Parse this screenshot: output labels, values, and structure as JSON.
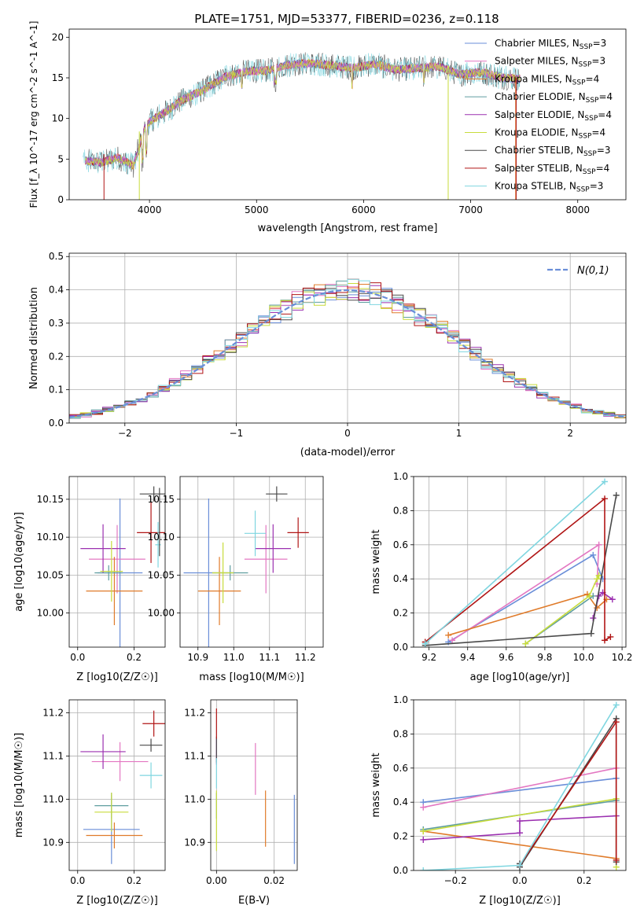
{
  "title": "PLATE=1751, MJD=53377, FIBERID=0236, z=0.118",
  "colors": {
    "chabrier_miles": "#6a8ed8",
    "salpeter_miles": "#e377c2",
    "kroupa_miles": "#e07b2a",
    "chabrier_elodie": "#5f9ea0",
    "salpeter_elodie": "#9b30b0",
    "kroupa_elodie": "#c8dc3c",
    "chabrier_stelib": "#4a4a4a",
    "salpeter_stelib": "#b01515",
    "kroupa_stelib": "#7fd6e0"
  },
  "chart_data": [
    {
      "id": "spectrum",
      "type": "line",
      "xlabel": "wavelength [Angstrom, rest frame]",
      "ylabel": "Flux [f_λ 10^-17 erg cm^-2 s^-1 A^-1]",
      "xlim": [
        3250,
        8450
      ],
      "ylim": [
        0,
        21
      ],
      "xticks": [
        4000,
        5000,
        6000,
        7000,
        8000
      ],
      "yticks": [
        0,
        5,
        10,
        15,
        20
      ],
      "continuum_anchors": [
        [
          3400,
          4.8
        ],
        [
          3550,
          4.6
        ],
        [
          3700,
          5.2
        ],
        [
          3850,
          4.2
        ],
        [
          3950,
          8.6
        ],
        [
          4000,
          9.6
        ],
        [
          4150,
          10.8
        ],
        [
          4300,
          12.2
        ],
        [
          4500,
          13.5
        ],
        [
          4700,
          15.1
        ],
        [
          4900,
          15.8
        ],
        [
          5100,
          15.9
        ],
        [
          5300,
          16.6
        ],
        [
          5500,
          16.8
        ],
        [
          5700,
          16.5
        ],
        [
          5900,
          16.2
        ],
        [
          6100,
          16.7
        ],
        [
          6300,
          16.0
        ],
        [
          6500,
          16.2
        ],
        [
          6700,
          16.4
        ],
        [
          6900,
          15.4
        ],
        [
          7100,
          15.7
        ],
        [
          7300,
          15.0
        ],
        [
          7500,
          14.8
        ],
        [
          7800,
          15.4
        ]
      ],
      "series_labels": [
        {
          "key": "chabrier_miles",
          "label": "Chabrier MILES, N",
          "sub": "SSP",
          "val": "=3"
        },
        {
          "key": "salpeter_miles",
          "label": "Salpeter MILES, N",
          "sub": "SSP",
          "val": "=3"
        },
        {
          "key": "kroupa_miles",
          "label": "Kroupa MILES, N",
          "sub": "SSP",
          "val": "=4"
        },
        {
          "key": "chabrier_elodie",
          "label": "Chabrier ELODIE, N",
          "sub": "SSP",
          "val": "=4"
        },
        {
          "key": "salpeter_elodie",
          "label": "Salpeter ELODIE, N",
          "sub": "SSP",
          "val": "=4"
        },
        {
          "key": "kroupa_elodie",
          "label": "Kroupa ELODIE, N",
          "sub": "SSP",
          "val": "=4"
        },
        {
          "key": "chabrier_stelib",
          "label": "Chabrier STELIB, N",
          "sub": "SSP",
          "val": "=3"
        },
        {
          "key": "salpeter_stelib",
          "label": "Salpeter STELIB, N",
          "sub": "SSP",
          "val": "=4"
        },
        {
          "key": "kroupa_stelib",
          "label": "Kroupa STELIB, N",
          "sub": "SSP",
          "val": "=3"
        }
      ],
      "legend": "upper right"
    },
    {
      "id": "residuals",
      "type": "step",
      "xlabel": "(data-model)/error",
      "ylabel": "Normed distribution",
      "xlim": [
        -2.5,
        2.5
      ],
      "ylim": [
        0,
        0.51
      ],
      "xticks": [
        -2,
        -1,
        0,
        1,
        2
      ],
      "yticks": [
        0.0,
        0.1,
        0.2,
        0.3,
        0.4,
        0.5
      ],
      "bin_width": 0.1,
      "reference": "N(0,1)",
      "grid": true,
      "legend": "upper right"
    },
    {
      "id": "age_vs_Z",
      "type": "errorbar",
      "xlabel": "Z [log10(Z/Z☉)]",
      "ylabel": "age [log10(age/yr)]",
      "xlim": [
        -0.03,
        0.31
      ],
      "ylim": [
        9.955,
        10.18
      ],
      "xticks": [
        0.0,
        0.2
      ],
      "yticks": [
        10.0,
        10.05,
        10.1,
        10.15
      ],
      "points": [
        {
          "key": "chabrier_miles",
          "x": 0.15,
          "y": 10.053,
          "xerr": 0.08,
          "yerr": 0.098
        },
        {
          "key": "salpeter_miles",
          "x": 0.14,
          "y": 10.071,
          "xerr": 0.1,
          "yerr": 0.045
        },
        {
          "key": "kroupa_miles",
          "x": 0.13,
          "y": 10.029,
          "xerr": 0.1,
          "yerr": 0.045
        },
        {
          "key": "chabrier_elodie",
          "x": 0.11,
          "y": 10.053,
          "xerr": 0.05,
          "yerr": 0.01
        },
        {
          "key": "salpeter_elodie",
          "x": 0.09,
          "y": 10.085,
          "xerr": 0.08,
          "yerr": 0.032
        },
        {
          "key": "kroupa_elodie",
          "x": 0.12,
          "y": 10.055,
          "xerr": 0.04,
          "yerr": 0.04
        },
        {
          "key": "chabrier_stelib",
          "x": 0.27,
          "y": 10.157,
          "xerr": 0.05,
          "yerr": 0.01
        },
        {
          "key": "salpeter_stelib",
          "x": 0.26,
          "y": 10.106,
          "xerr": 0.05,
          "yerr": 0.04
        },
        {
          "key": "kroupa_stelib",
          "x": 0.285,
          "y": 10.09,
          "xerr": 0.01,
          "yerr": 0.03
        },
        {
          "key": "chabrier_stelib",
          "x": 0.29,
          "y": 10.12,
          "xerr": 0.0,
          "yerr": 0.045
        }
      ]
    },
    {
      "id": "age_vs_mass",
      "type": "errorbar",
      "xlabel": "mass [log10(M/M☉)]",
      "ylabel": "",
      "xlim": [
        10.85,
        11.25
      ],
      "ylim": [
        9.955,
        10.18
      ],
      "xticks": [
        10.9,
        11.0,
        11.1,
        11.2
      ],
      "yticks": [
        10.0,
        10.05,
        10.1,
        10.15
      ],
      "points": [
        {
          "key": "chabrier_miles",
          "x": 10.93,
          "y": 10.053,
          "xerr": 0.07,
          "yerr": 0.098
        },
        {
          "key": "salpeter_miles",
          "x": 11.09,
          "y": 10.071,
          "xerr": 0.06,
          "yerr": 0.045
        },
        {
          "key": "kroupa_miles",
          "x": 10.96,
          "y": 10.029,
          "xerr": 0.06,
          "yerr": 0.045
        },
        {
          "key": "chabrier_elodie",
          "x": 10.99,
          "y": 10.053,
          "xerr": 0.05,
          "yerr": 0.01
        },
        {
          "key": "salpeter_elodie",
          "x": 11.11,
          "y": 10.085,
          "xerr": 0.05,
          "yerr": 0.032
        },
        {
          "key": "kroupa_elodie",
          "x": 10.97,
          "y": 10.053,
          "xerr": 0.03,
          "yerr": 0.04
        },
        {
          "key": "chabrier_stelib",
          "x": 11.12,
          "y": 10.157,
          "xerr": 0.03,
          "yerr": 0.01
        },
        {
          "key": "salpeter_stelib",
          "x": 11.18,
          "y": 10.106,
          "xerr": 0.03,
          "yerr": 0.02
        },
        {
          "key": "kroupa_stelib",
          "x": 11.06,
          "y": 10.105,
          "xerr": 0.03,
          "yerr": 0.03
        }
      ]
    },
    {
      "id": "weight_vs_age",
      "type": "line",
      "xlabel": "age [log10(age/yr)]",
      "ylabel": "mass weight",
      "xlim": [
        9.12,
        10.22
      ],
      "ylim": [
        0,
        1.0
      ],
      "xticks": [
        9.2,
        9.4,
        9.6,
        9.8,
        10.0,
        10.2
      ],
      "yticks": [
        0.0,
        0.2,
        0.4,
        0.6,
        0.8,
        1.0
      ],
      "series": [
        {
          "key": "chabrier_miles",
          "x": [
            9.3,
            10.05,
            10.1
          ],
          "y": [
            0.03,
            0.54,
            0.4
          ]
        },
        {
          "key": "salpeter_miles",
          "x": [
            9.32,
            10.08,
            10.07
          ],
          "y": [
            0.04,
            0.6,
            0.37
          ]
        },
        {
          "key": "kroupa_miles",
          "x": [
            9.3,
            10.02,
            10.07,
            10.12
          ],
          "y": [
            0.07,
            0.31,
            0.23,
            0.28
          ]
        },
        {
          "key": "chabrier_elodie",
          "x": [
            9.7,
            10.05
          ],
          "y": [
            0.02,
            0.3
          ]
        },
        {
          "key": "salpeter_elodie",
          "x": [
            10.05,
            10.08,
            10.1,
            10.15
          ],
          "y": [
            0.17,
            0.3,
            0.32,
            0.28
          ]
        },
        {
          "key": "kroupa_elodie",
          "x": [
            9.7,
            10.03,
            10.07,
            10.08
          ],
          "y": [
            0.02,
            0.3,
            0.4,
            0.42
          ]
        },
        {
          "key": "chabrier_stelib",
          "x": [
            9.18,
            10.04,
            10.17
          ],
          "y": [
            0.01,
            0.08,
            0.89
          ]
        },
        {
          "key": "salpeter_stelib",
          "x": [
            9.18,
            10.11,
            10.11,
            10.14
          ],
          "y": [
            0.03,
            0.87,
            0.04,
            0.06
          ]
        },
        {
          "key": "kroupa_stelib",
          "x": [
            9.18,
            10.11
          ],
          "y": [
            0.02,
            0.97
          ]
        }
      ]
    },
    {
      "id": "mass_vs_Z",
      "type": "errorbar",
      "xlabel": "Z [log10(Z/Z☉)]",
      "ylabel": "mass [log10(M/M☉)]",
      "xlim": [
        -0.03,
        0.31
      ],
      "ylim": [
        10.835,
        11.23
      ],
      "xticks": [
        0.0,
        0.2
      ],
      "yticks": [
        10.9,
        11.0,
        11.1,
        11.2
      ],
      "points": [
        {
          "key": "chabrier_miles",
          "x": 0.12,
          "y": 10.93,
          "xerr": 0.1,
          "yerr": 0.08
        },
        {
          "key": "salpeter_miles",
          "x": 0.15,
          "y": 11.087,
          "xerr": 0.1,
          "yerr": 0.045
        },
        {
          "key": "kroupa_miles",
          "x": 0.13,
          "y": 10.916,
          "xerr": 0.1,
          "yerr": 0.03
        },
        {
          "key": "chabrier_elodie",
          "x": 0.12,
          "y": 10.985,
          "xerr": 0.06,
          "yerr": 0.03
        },
        {
          "key": "salpeter_elodie",
          "x": 0.09,
          "y": 11.11,
          "xerr": 0.08,
          "yerr": 0.04
        },
        {
          "key": "kroupa_elodie",
          "x": 0.12,
          "y": 10.97,
          "xerr": 0.06,
          "yerr": 0.045
        },
        {
          "key": "chabrier_stelib",
          "x": 0.26,
          "y": 11.125,
          "xerr": 0.04,
          "yerr": 0.015
        },
        {
          "key": "salpeter_stelib",
          "x": 0.27,
          "y": 11.175,
          "xerr": 0.04,
          "yerr": 0.03
        },
        {
          "key": "kroupa_stelib",
          "x": 0.26,
          "y": 11.055,
          "xerr": 0.04,
          "yerr": 0.03
        }
      ]
    },
    {
      "id": "mass_vs_ebv",
      "type": "errorbar",
      "xlabel": "E(B-V)",
      "ylabel": "",
      "xlim": [
        -0.002,
        0.028
      ],
      "ylim": [
        10.835,
        11.23
      ],
      "xticks": [
        0.0,
        0.02
      ],
      "yticks": [
        10.9,
        11.0,
        11.1,
        11.2
      ],
      "points": [
        {
          "key": "chabrier_miles",
          "x": 0.027,
          "y": 10.93,
          "yerr": 0.08
        },
        {
          "key": "salpeter_miles",
          "x": 0.0135,
          "y": 11.07,
          "yerr": 0.06
        },
        {
          "key": "kroupa_miles",
          "x": 0.017,
          "y": 10.955,
          "yerr": 0.065
        },
        {
          "key": "chabrier_elodie",
          "x": 0.0,
          "y": 10.985,
          "yerr": 0.03
        },
        {
          "key": "salpeter_elodie",
          "x": 0.0,
          "y": 11.11,
          "yerr": 0.03
        },
        {
          "key": "kroupa_elodie",
          "x": 0.0,
          "y": 10.95,
          "yerr": 0.07
        },
        {
          "key": "chabrier_stelib",
          "x": 0.0,
          "y": 11.115,
          "yerr": 0.03
        },
        {
          "key": "salpeter_stelib",
          "x": 0.0,
          "y": 11.175,
          "yerr": 0.035
        },
        {
          "key": "kroupa_stelib",
          "x": 0.0,
          "y": 11.06,
          "yerr": 0.035
        }
      ]
    },
    {
      "id": "weight_vs_Z",
      "type": "line",
      "xlabel": "Z [log10(Z/Z☉)]",
      "ylabel": "mass weight",
      "xlim": [
        -0.33,
        0.33
      ],
      "ylim": [
        0,
        1.0
      ],
      "xticks": [
        -0.2,
        0.0,
        0.2
      ],
      "yticks": [
        0.0,
        0.2,
        0.4,
        0.6,
        0.8,
        1.0
      ],
      "series": [
        {
          "key": "chabrier_miles",
          "x": [
            -0.3,
            0.3
          ],
          "y": [
            0.4,
            0.54
          ]
        },
        {
          "key": "salpeter_miles",
          "x": [
            -0.3,
            0.3
          ],
          "y": [
            0.37,
            0.6
          ]
        },
        {
          "key": "kroupa_miles",
          "x": [
            -0.3,
            0.3
          ],
          "y": [
            0.23,
            0.07
          ]
        },
        {
          "key": "chabrier_elodie",
          "x": [
            -0.3,
            0.3
          ],
          "y": [
            0.24,
            0.41
          ]
        },
        {
          "key": "salpeter_elodie",
          "x": [
            -0.3,
            0.0,
            0.0,
            0.3
          ],
          "y": [
            0.18,
            0.22,
            0.29,
            0.32
          ]
        },
        {
          "key": "kroupa_elodie",
          "x": [
            -0.3,
            0.3,
            0.3
          ],
          "y": [
            0.23,
            0.42,
            0.02
          ]
        },
        {
          "key": "chabrier_stelib",
          "x": [
            0.0,
            0.0,
            0.3,
            0.3
          ],
          "y": [
            0.04,
            0.02,
            0.89,
            0.05
          ]
        },
        {
          "key": "salpeter_stelib",
          "x": [
            0.0,
            0.3,
            0.3
          ],
          "y": [
            0.03,
            0.87,
            0.06
          ]
        },
        {
          "key": "kroupa_stelib",
          "x": [
            -0.3,
            0.0,
            0.3
          ],
          "y": [
            0.0,
            0.03,
            0.97
          ]
        }
      ]
    }
  ]
}
